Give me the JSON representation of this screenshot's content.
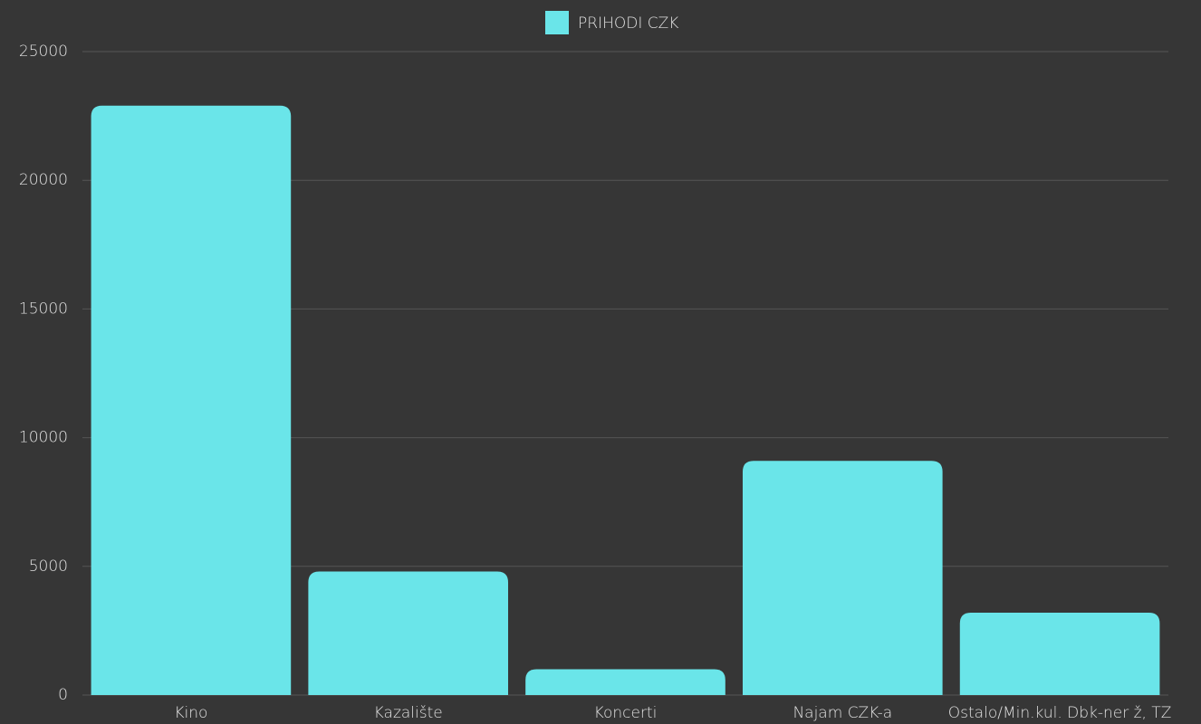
{
  "chart_data": {
    "type": "bar",
    "categories": [
      "Kino",
      "Kazalište",
      "Koncerti",
      "Najam CZK-a",
      "Ostalo/Min.kul. Dbk-ner ž, TZ"
    ],
    "series": [
      {
        "name": "PRIHODI CZK",
        "color": "#6ae5e9",
        "values": [
          22900,
          4800,
          1000,
          9100,
          3200
        ]
      }
    ],
    "ylim": [
      0,
      25000
    ],
    "yticks": [
      0,
      5000,
      10000,
      15000,
      20000,
      25000
    ],
    "grid": true,
    "legend": "top"
  }
}
